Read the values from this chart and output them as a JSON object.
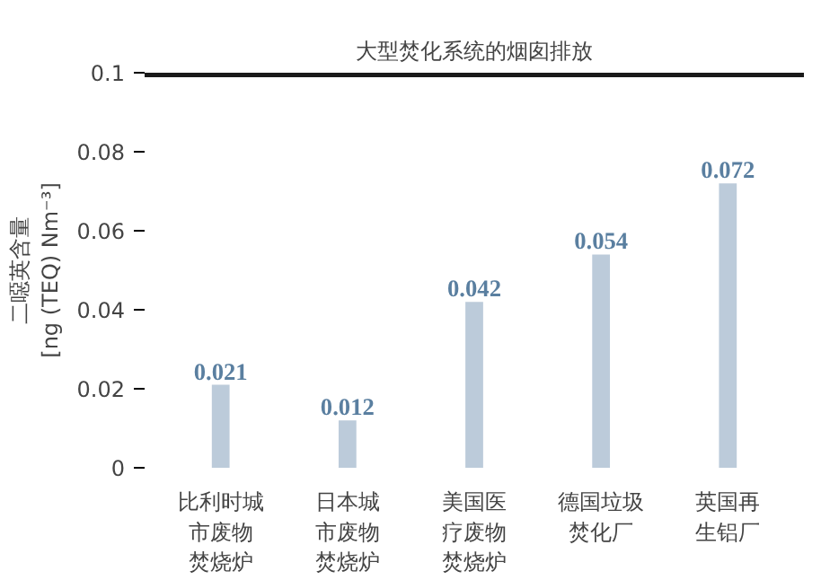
{
  "chart_data": {
    "type": "bar",
    "ylabel": "二噁英含量\n[ng (TEQ) Nm⁻³]",
    "categories": [
      "比利时城市废物焚烧炉",
      "日本城市废物焚烧炉",
      "美国医疗废物焚烧炉",
      "德国垃圾焚化厂",
      "英国再生铝厂"
    ],
    "values": [
      0.021,
      0.012,
      0.042,
      0.054,
      0.072
    ],
    "color": "#bccbda",
    "data_labels": true,
    "ylim": [
      0,
      0.1
    ],
    "yticks": [
      0,
      0.02,
      0.04,
      0.06,
      0.08,
      0.1
    ],
    "grid": false,
    "ref_lines": [
      {
        "axis": "y",
        "value": 0.1,
        "label": "大型焚化系统的烟囱排放",
        "color": "#1a1a1a"
      }
    ]
  }
}
